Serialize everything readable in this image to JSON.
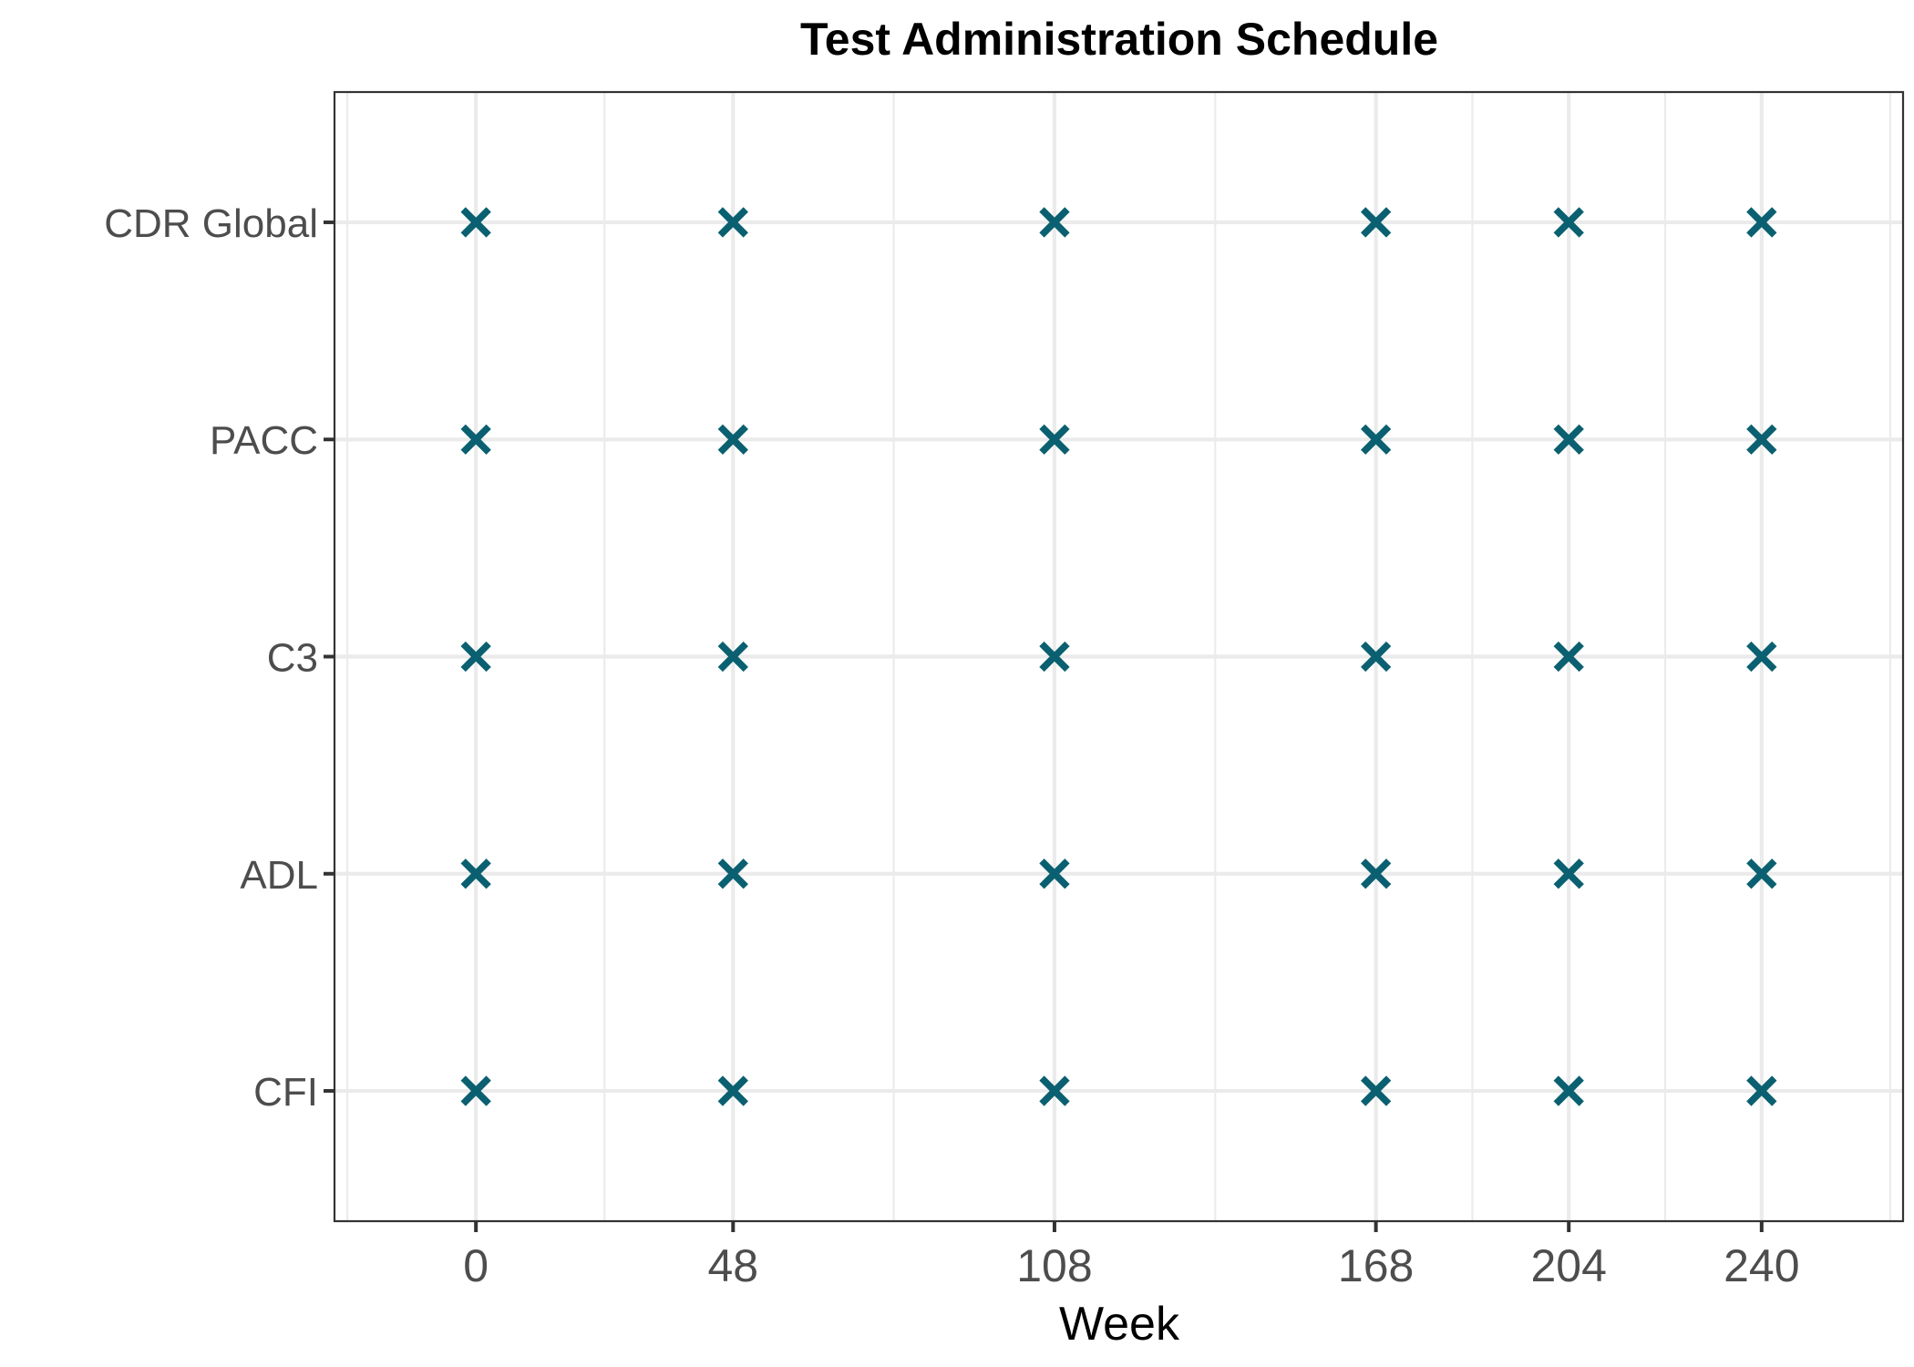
{
  "chart_data": {
    "type": "scatter",
    "title": "Test Administration Schedule",
    "xlabel": "Week",
    "ylabel": "",
    "xlim": [
      -26.4,
      266.4
    ],
    "x_ticks": [
      0,
      48,
      108,
      168,
      204,
      240
    ],
    "x_minor_ticks": [
      -24,
      24,
      78,
      138,
      186,
      222,
      264
    ],
    "categories": [
      "CDR Global",
      "PACC",
      "C3",
      "ADL",
      "CFI"
    ],
    "points": [
      {
        "test": "CDR Global",
        "weeks": [
          0,
          48,
          108,
          168,
          204,
          240
        ]
      },
      {
        "test": "PACC",
        "weeks": [
          0,
          48,
          108,
          168,
          204,
          240
        ]
      },
      {
        "test": "C3",
        "weeks": [
          0,
          48,
          108,
          168,
          204,
          240
        ]
      },
      {
        "test": "ADL",
        "weeks": [
          0,
          48,
          108,
          168,
          204,
          240
        ]
      },
      {
        "test": "CFI",
        "weeks": [
          0,
          48,
          108,
          168,
          204,
          240
        ]
      }
    ],
    "marker": "x",
    "marker_color": "#0a6070",
    "grid": true,
    "legend": "none"
  }
}
